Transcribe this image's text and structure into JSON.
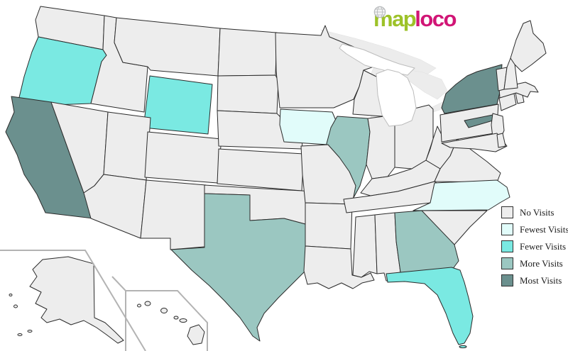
{
  "logo": {
    "part1": "map",
    "part2": "loco",
    "green": "#9dc229",
    "magenta": "#d11576",
    "globe_icon": "globe"
  },
  "legend": {
    "swatch_border": "#2f2f2f",
    "items": [
      {
        "id": "none",
        "label": "No Visits",
        "color": "#ededed"
      },
      {
        "id": "fewest",
        "label": "Fewest Visits",
        "color": "#e1fcfa"
      },
      {
        "id": "fewer",
        "label": "Fewer Visits",
        "color": "#7ae9e2"
      },
      {
        "id": "more",
        "label": "More Visits",
        "color": "#9bc7c1"
      },
      {
        "id": "most",
        "label": "Most Visits",
        "color": "#6b908e"
      }
    ]
  },
  "map": {
    "default_fill": "#ededed",
    "border_color": "#2b2b2b",
    "lake_fill": "#ececec",
    "michigan_fill": "#ffffff",
    "inset_frame_color": "#b3b3b3",
    "state_visit_levels": {
      "CA": "most",
      "NY": "most",
      "OR": "fewer",
      "WY": "fewer",
      "FL": "fewer",
      "IA": "fewest",
      "NC": "fewest",
      "IL": "more",
      "TX": "more",
      "GA": "more"
    }
  }
}
